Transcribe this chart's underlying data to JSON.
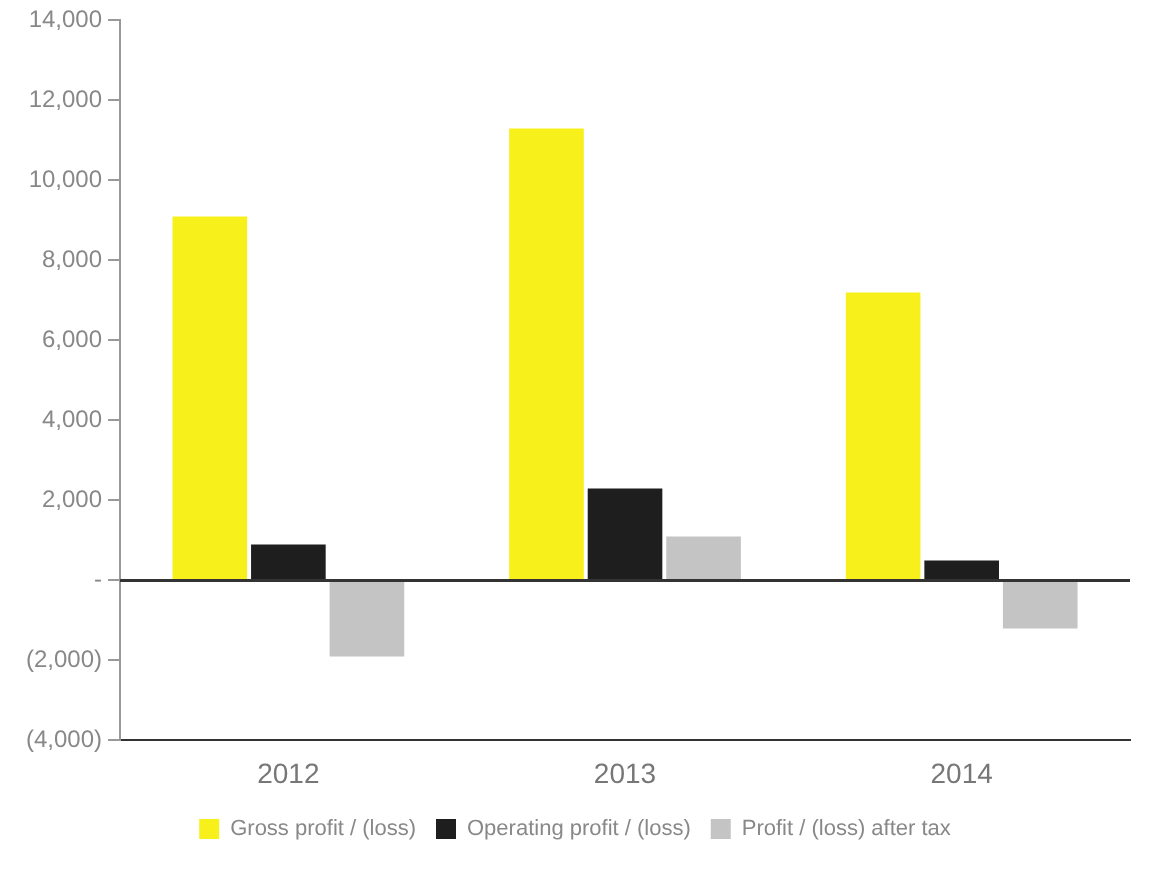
{
  "chart_data": {
    "type": "bar",
    "categories": [
      "2012",
      "2013",
      "2014"
    ],
    "series": [
      {
        "name": "Gross profit / (loss)",
        "color": "#f7f01a",
        "values": [
          9100,
          11300,
          7200
        ]
      },
      {
        "name": "Operating profit / (loss)",
        "color": "#1e1e1e",
        "values": [
          900,
          2300,
          500
        ]
      },
      {
        "name": "Profit / (loss) after tax",
        "color": "#c4c4c4",
        "values": [
          -1900,
          1100,
          -1200
        ]
      }
    ],
    "ylim": [
      -4000,
      14000
    ],
    "yticks": [
      {
        "value": -4000,
        "label": "(4,000)"
      },
      {
        "value": -2000,
        "label": "(2,000)"
      },
      {
        "value": 0,
        "label": "-"
      },
      {
        "value": 2000,
        "label": "2,000"
      },
      {
        "value": 4000,
        "label": "4,000"
      },
      {
        "value": 6000,
        "label": "6,000"
      },
      {
        "value": 8000,
        "label": "8,000"
      },
      {
        "value": 10000,
        "label": "10,000"
      },
      {
        "value": 12000,
        "label": "12,000"
      },
      {
        "value": 14000,
        "label": "14,000"
      }
    ],
    "ref_lines": [
      {
        "axis": "y",
        "value": 0,
        "color": "#333333"
      }
    ],
    "grid": false,
    "legend": "bottom"
  }
}
